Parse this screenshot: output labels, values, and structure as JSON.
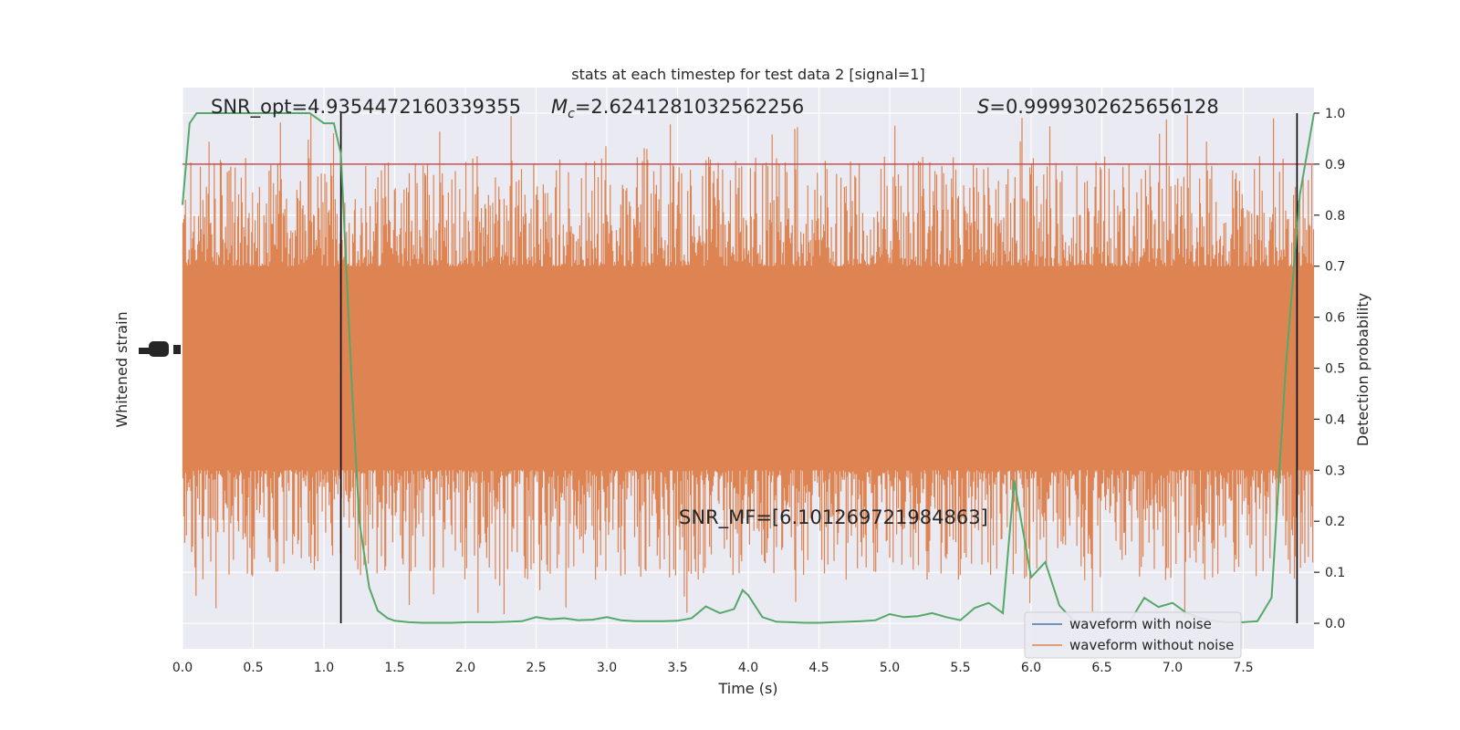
{
  "chart_data": {
    "type": "line",
    "title": "stats at each timestep for test data 2 [signal=1]",
    "xlabel": "Time (s)",
    "ylabel_left": "Whitened strain",
    "ylabel_right": "Detection probability",
    "xlim": [
      0.0,
      8.0
    ],
    "ylim_right": [
      -0.05,
      1.05
    ],
    "x_ticks": [
      "0.0",
      "0.5",
      "1.0",
      "1.5",
      "2.0",
      "2.5",
      "3.0",
      "3.5",
      "4.0",
      "4.5",
      "5.0",
      "5.5",
      "6.0",
      "6.5",
      "7.0",
      "7.5"
    ],
    "x_tick_values": [
      0.0,
      0.5,
      1.0,
      1.5,
      2.0,
      2.5,
      3.0,
      3.5,
      4.0,
      4.5,
      5.0,
      5.5,
      6.0,
      6.5,
      7.0,
      7.5
    ],
    "y_ticks_right": [
      "0.0",
      "0.1",
      "0.2",
      "0.3",
      "0.4",
      "0.5",
      "0.6",
      "0.7",
      "0.8",
      "0.9",
      "1.0"
    ],
    "y_tick_values_right": [
      0.0,
      0.1,
      0.2,
      0.3,
      0.4,
      0.5,
      0.6,
      0.7,
      0.8,
      0.9,
      1.0
    ],
    "threshold": 0.9,
    "vlines": [
      1.12,
      7.88
    ],
    "annotations": {
      "snr_opt": "SNR_opt=4.9354472160339355",
      "mc_symbol": "M",
      "mc_sub": "c",
      "mc_value": "=2.6241281032562256",
      "s_symbol": "S",
      "s_value": "=0.9999302625656128",
      "snr_mf": "SNR_MF=[6.101269721984863]"
    },
    "series": [
      {
        "name": "waveform with noise",
        "color": "#4c72b0"
      },
      {
        "name": "waveform without noise",
        "color": "#dd8452"
      }
    ],
    "probability": {
      "color": "#55a868",
      "x": [
        0.0,
        0.05,
        0.1,
        0.2,
        0.3,
        0.4,
        0.5,
        0.6,
        0.7,
        0.8,
        0.9,
        1.0,
        1.07,
        1.12,
        1.2,
        1.25,
        1.32,
        1.38,
        1.45,
        1.5,
        1.6,
        1.7,
        1.8,
        1.9,
        2.0,
        2.1,
        2.2,
        2.3,
        2.4,
        2.5,
        2.6,
        2.7,
        2.8,
        2.9,
        3.0,
        3.1,
        3.2,
        3.3,
        3.4,
        3.5,
        3.6,
        3.7,
        3.8,
        3.9,
        3.96,
        4.0,
        4.1,
        4.2,
        4.3,
        4.4,
        4.5,
        4.6,
        4.7,
        4.8,
        4.9,
        5.0,
        5.1,
        5.2,
        5.3,
        5.4,
        5.5,
        5.6,
        5.7,
        5.8,
        5.88,
        6.0,
        6.1,
        6.2,
        6.3,
        6.4,
        6.5,
        6.6,
        6.7,
        6.8,
        6.9,
        7.0,
        7.1,
        7.2,
        7.3,
        7.4,
        7.5,
        7.6,
        7.7,
        7.8,
        7.9,
        8.0
      ],
      "y": [
        0.82,
        0.98,
        1.0,
        1.0,
        1.0,
        1.0,
        1.0,
        1.0,
        1.0,
        1.0,
        1.0,
        0.98,
        0.98,
        0.92,
        0.45,
        0.2,
        0.07,
        0.025,
        0.01,
        0.005,
        0.002,
        0.001,
        0.001,
        0.001,
        0.002,
        0.002,
        0.002,
        0.003,
        0.004,
        0.012,
        0.008,
        0.01,
        0.006,
        0.007,
        0.012,
        0.006,
        0.004,
        0.004,
        0.004,
        0.005,
        0.01,
        0.033,
        0.02,
        0.028,
        0.065,
        0.055,
        0.012,
        0.003,
        0.002,
        0.001,
        0.001,
        0.002,
        0.003,
        0.004,
        0.006,
        0.018,
        0.012,
        0.014,
        0.02,
        0.012,
        0.006,
        0.03,
        0.04,
        0.02,
        0.28,
        0.09,
        0.12,
        0.035,
        0.005,
        0.002,
        0.002,
        0.003,
        0.004,
        0.05,
        0.032,
        0.04,
        0.02,
        0.01,
        0.004,
        0.002,
        0.002,
        0.004,
        0.05,
        0.5,
        0.84,
        1.0
      ]
    },
    "strain_band": {
      "core_low": 0.3,
      "core_high": 0.7,
      "upper_extreme": 1.0,
      "lower_extreme": 0.0
    },
    "legend_position": "lower right",
    "grid": true,
    "background_color": "#eaeaf2",
    "threshold_color": "#c44e52",
    "vline_color": "#000000"
  }
}
